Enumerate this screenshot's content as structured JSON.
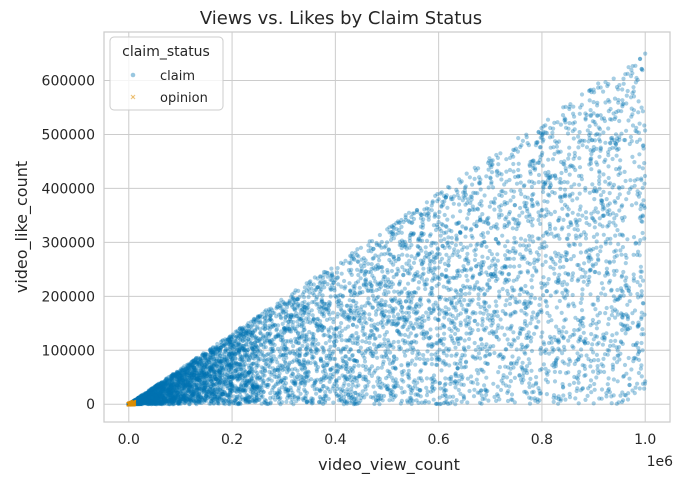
{
  "chart_data": {
    "type": "scatter",
    "title": "Views vs. Likes by Claim Status",
    "xlabel": "video_view_count",
    "ylabel": "video_like_count",
    "x_offset_text": "1e6",
    "xlim": [
      -48000,
      1048000
    ],
    "ylim": [
      -33000,
      690000
    ],
    "x_ticks": [
      0,
      200000,
      400000,
      600000,
      800000,
      1000000
    ],
    "x_tick_labels": [
      "0.0",
      "0.2",
      "0.4",
      "0.6",
      "0.8",
      "1.0"
    ],
    "y_ticks": [
      0,
      100000,
      200000,
      300000,
      400000,
      500000,
      600000
    ],
    "y_tick_labels": [
      "0",
      "100000",
      "200000",
      "300000",
      "400000",
      "500000",
      "600000"
    ],
    "grid": true,
    "legend": {
      "title": "claim_status",
      "placement": "top-left",
      "entries": [
        "claim",
        "opinion"
      ]
    },
    "series": [
      {
        "name": "claim",
        "color": "#0173b2",
        "marker": "circle",
        "alpha": 0.35,
        "distribution": "views uniform over [0, 1000000]; likes between 0 and ~0.655 x views",
        "points": [
          [
            5000,
            1200
          ],
          [
            20000,
            9000
          ],
          [
            45000,
            20000
          ],
          [
            80000,
            30000
          ],
          [
            110000,
            60000
          ],
          [
            150000,
            40000
          ],
          [
            200000,
            110000
          ],
          [
            250000,
            90000
          ],
          [
            300000,
            170000
          ],
          [
            350000,
            120000
          ],
          [
            400000,
            230000
          ],
          [
            450000,
            150000
          ],
          [
            500000,
            300000
          ],
          [
            550000,
            200000
          ],
          [
            600000,
            380000
          ],
          [
            650000,
            250000
          ],
          [
            700000,
            420000
          ],
          [
            750000,
            300000
          ],
          [
            800000,
            500000
          ],
          [
            850000,
            350000
          ],
          [
            900000,
            560000
          ],
          [
            950000,
            400000
          ],
          [
            990000,
            640000
          ],
          [
            1000000,
            650000
          ],
          [
            995000,
            100000
          ]
        ]
      },
      {
        "name": "opinion",
        "color": "#de8f05",
        "marker": "x",
        "alpha": 0.35,
        "distribution": "views 0 to ~10000; likes 0 to ~4000",
        "points": [
          [
            500,
            100
          ],
          [
            1500,
            400
          ],
          [
            3000,
            800
          ],
          [
            4500,
            1500
          ],
          [
            6000,
            2200
          ],
          [
            7500,
            2800
          ],
          [
            9000,
            3500
          ],
          [
            2000,
            900
          ],
          [
            5000,
            600
          ],
          [
            8000,
            1200
          ]
        ]
      }
    ]
  }
}
